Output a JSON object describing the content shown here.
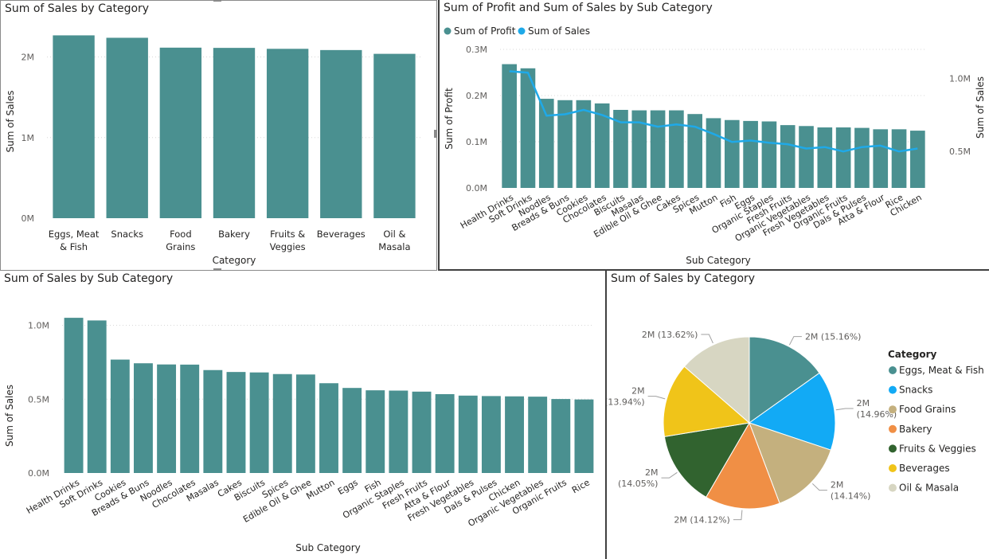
{
  "colors": {
    "bar": "#4a9090",
    "line": "#1fa9e8",
    "pie": [
      "#4a9090",
      "#12aaf5",
      "#c4b07e",
      "#f08f45",
      "#31632f",
      "#f0c419",
      "#d7d6c2"
    ]
  },
  "panels": {
    "p1": {
      "title": "Sum of Sales by Category"
    },
    "p2": {
      "title": "Sum of Profit and Sum of Sales by Sub Category"
    },
    "p3": {
      "title": "Sum of Sales by Sub Category"
    },
    "p4": {
      "title": "Sum of Sales by Category"
    }
  },
  "chart_data": [
    {
      "id": "sales-by-category-bar",
      "type": "bar",
      "title": "Sum of Sales by Category",
      "xlabel": "Category",
      "ylabel": "Sum of Sales",
      "categories": [
        [
          "Eggs, Meat",
          "& Fish"
        ],
        [
          "Snacks"
        ],
        [
          "Food",
          "Grains"
        ],
        [
          "Bakery"
        ],
        [
          "Fruits &",
          "Veggies"
        ],
        [
          "Beverages"
        ],
        [
          "Oil &",
          "Masala"
        ]
      ],
      "values": [
        2267534,
        2237546,
        2115272,
        2112281,
        2100727,
        2085313,
        2038442
      ],
      "ylim": [
        0,
        2400000
      ],
      "yticks": [
        0,
        1000000,
        2000000
      ],
      "ytick_labels": [
        "0M",
        "1M",
        "2M"
      ],
      "grid": true
    },
    {
      "id": "profit-sales-by-subcategory-combo",
      "type": "bar",
      "title": "Sum of Profit and Sum of Sales by Sub Category",
      "xlabel": "Sub Category",
      "ylabel": "Sum of Profit",
      "y2label": "Sum of Sales",
      "legend": {
        "position": "top-left",
        "items": [
          "Sum of Profit",
          "Sum of Sales"
        ]
      },
      "categories": [
        "Health Drinks",
        "Soft Drinks",
        "Noodles",
        "Breads & Buns",
        "Cookies",
        "Chocolates",
        "Biscuits",
        "Masalas",
        "Edible Oil & Ghee",
        "Cakes",
        "Spices",
        "Mutton",
        "Fish",
        "Eggs",
        "Organic Staples",
        "Fresh Fruits",
        "Organic Vegetables",
        "Fresh Vegetables",
        "Organic Fruits",
        "Dals & Pulses",
        "Atta & Flour",
        "Rice",
        "Chicken"
      ],
      "series": [
        {
          "name": "Sum of Profit",
          "type": "bar",
          "axis": "left",
          "values": [
            0.268,
            0.259,
            0.193,
            0.19,
            0.19,
            0.183,
            0.169,
            0.168,
            0.168,
            0.168,
            0.16,
            0.151,
            0.147,
            0.145,
            0.144,
            0.136,
            0.134,
            0.131,
            0.131,
            0.13,
            0.127,
            0.127,
            0.124
          ]
        },
        {
          "name": "Sum of Sales",
          "type": "line",
          "axis": "right",
          "values": [
            1.05,
            1.04,
            0.745,
            0.755,
            0.785,
            0.75,
            0.7,
            0.7,
            0.67,
            0.685,
            0.67,
            0.62,
            0.565,
            0.575,
            0.56,
            0.55,
            0.52,
            0.53,
            0.5,
            0.53,
            0.54,
            0.5,
            0.52
          ]
        }
      ],
      "ylim": [
        0,
        0.3
      ],
      "yticks": [
        0,
        0.1,
        0.2,
        0.3
      ],
      "ytick_labels": [
        "0.0M",
        "0.1M",
        "0.2M",
        "0.3M"
      ],
      "y2lim": [
        0.25,
        1.2
      ],
      "y2ticks": [
        0.5,
        1.0
      ],
      "y2tick_labels": [
        "0.5M",
        "1.0M"
      ],
      "grid": true
    },
    {
      "id": "sales-by-subcategory-bar",
      "type": "bar",
      "title": "Sum of Sales by Sub Category",
      "xlabel": "Sub Category",
      "ylabel": "Sum of Sales",
      "categories": [
        "Health Drinks",
        "Soft Drinks",
        "Cookies",
        "Breads & Buns",
        "Noodles",
        "Chocolates",
        "Masalas",
        "Cakes",
        "Biscuits",
        "Spices",
        "Edible Oil & Ghee",
        "Mutton",
        "Eggs",
        "Fish",
        "Organic Staples",
        "Fresh Fruits",
        "Atta & Flour",
        "Fresh Vegetables",
        "Dals & Pulses",
        "Chicken",
        "Organic Vegetables",
        "Organic Fruits",
        "Rice"
      ],
      "values": [
        1.051,
        1.033,
        0.768,
        0.743,
        0.735,
        0.734,
        0.697,
        0.684,
        0.681,
        0.67,
        0.667,
        0.608,
        0.576,
        0.56,
        0.558,
        0.551,
        0.534,
        0.524,
        0.521,
        0.519,
        0.517,
        0.501,
        0.498
      ],
      "ylim": [
        0,
        1.1
      ],
      "yticks": [
        0,
        0.5,
        1.0
      ],
      "ytick_labels": [
        "0.0M",
        "0.5M",
        "1.0M"
      ],
      "grid": true
    },
    {
      "id": "sales-by-category-pie",
      "type": "pie",
      "title": "Sum of Sales by Category",
      "legend": {
        "title": "Category",
        "position": "right"
      },
      "categories": [
        "Eggs, Meat & Fish",
        "Snacks",
        "Food Grains",
        "Bakery",
        "Fruits & Veggies",
        "Beverages",
        "Oil & Masala"
      ],
      "values": [
        15.16,
        14.96,
        14.14,
        14.12,
        14.05,
        13.94,
        13.62
      ],
      "labels": [
        [
          "2M (15.16%)"
        ],
        [
          "2M",
          "(14.96%)"
        ],
        [
          "2M",
          "(14.14%)"
        ],
        [
          "2M (14.12%)"
        ],
        [
          "2M",
          "(14.05%)"
        ],
        [
          "2M",
          "(13.94%)"
        ],
        [
          "2M (13.62%)"
        ]
      ]
    }
  ]
}
